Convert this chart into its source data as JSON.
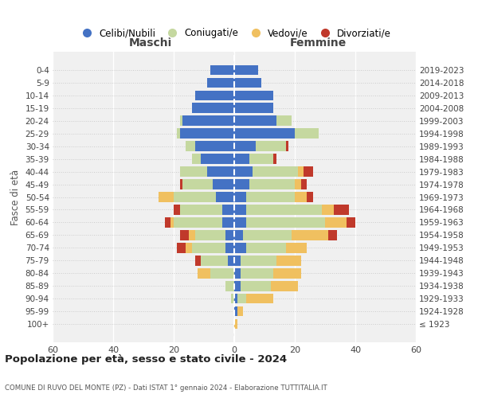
{
  "age_groups": [
    "100+",
    "95-99",
    "90-94",
    "85-89",
    "80-84",
    "75-79",
    "70-74",
    "65-69",
    "60-64",
    "55-59",
    "50-54",
    "45-49",
    "40-44",
    "35-39",
    "30-34",
    "25-29",
    "20-24",
    "15-19",
    "10-14",
    "5-9",
    "0-4"
  ],
  "birth_years": [
    "≤ 1923",
    "1924-1928",
    "1929-1933",
    "1934-1938",
    "1939-1943",
    "1944-1948",
    "1949-1953",
    "1954-1958",
    "1959-1963",
    "1964-1968",
    "1969-1973",
    "1974-1978",
    "1979-1983",
    "1984-1988",
    "1989-1993",
    "1994-1998",
    "1999-2003",
    "2004-2008",
    "2009-2013",
    "2014-2018",
    "2019-2023"
  ],
  "maschi": {
    "celibe": [
      0,
      0,
      0,
      0,
      0,
      2,
      3,
      3,
      4,
      4,
      6,
      7,
      9,
      11,
      13,
      18,
      17,
      14,
      13,
      9,
      8
    ],
    "coniugato": [
      0,
      0,
      1,
      3,
      8,
      9,
      11,
      10,
      16,
      14,
      14,
      10,
      9,
      3,
      3,
      1,
      1,
      0,
      0,
      0,
      0
    ],
    "vedovo": [
      0,
      0,
      0,
      0,
      4,
      0,
      2,
      2,
      1,
      0,
      5,
      0,
      0,
      0,
      0,
      0,
      0,
      0,
      0,
      0,
      0
    ],
    "divorziato": [
      0,
      0,
      0,
      0,
      0,
      2,
      3,
      3,
      2,
      2,
      0,
      1,
      0,
      0,
      0,
      0,
      0,
      0,
      0,
      0,
      0
    ]
  },
  "femmine": {
    "nubile": [
      0,
      1,
      1,
      2,
      2,
      2,
      4,
      3,
      4,
      4,
      4,
      5,
      6,
      5,
      7,
      20,
      14,
      13,
      13,
      9,
      8
    ],
    "coniugata": [
      0,
      0,
      3,
      10,
      11,
      12,
      13,
      16,
      26,
      25,
      16,
      15,
      15,
      8,
      10,
      8,
      5,
      0,
      0,
      0,
      0
    ],
    "vedova": [
      1,
      2,
      9,
      9,
      9,
      8,
      7,
      12,
      7,
      4,
      4,
      2,
      2,
      0,
      0,
      0,
      0,
      0,
      0,
      0,
      0
    ],
    "divorziata": [
      0,
      0,
      0,
      0,
      0,
      0,
      0,
      3,
      3,
      5,
      2,
      2,
      3,
      1,
      1,
      0,
      0,
      0,
      0,
      0,
      0
    ]
  },
  "colors": {
    "celibe": "#4472c4",
    "coniugato": "#c5d8a0",
    "vedovo": "#f0c060",
    "divorziato": "#c0392b"
  },
  "xlim": 60,
  "title": "Popolazione per età, sesso e stato civile - 2024",
  "subtitle": "COMUNE DI RUVO DEL MONTE (PZ) - Dati ISTAT 1° gennaio 2024 - Elaborazione TUTTITALIA.IT",
  "ylabel_left": "Fasce di età",
  "legend_labels": [
    "Celibi/Nubili",
    "Coniugati/e",
    "Vedovi/e",
    "Divorziati/e"
  ],
  "maschi_label": "Maschi",
  "femmine_label": "Femmine"
}
